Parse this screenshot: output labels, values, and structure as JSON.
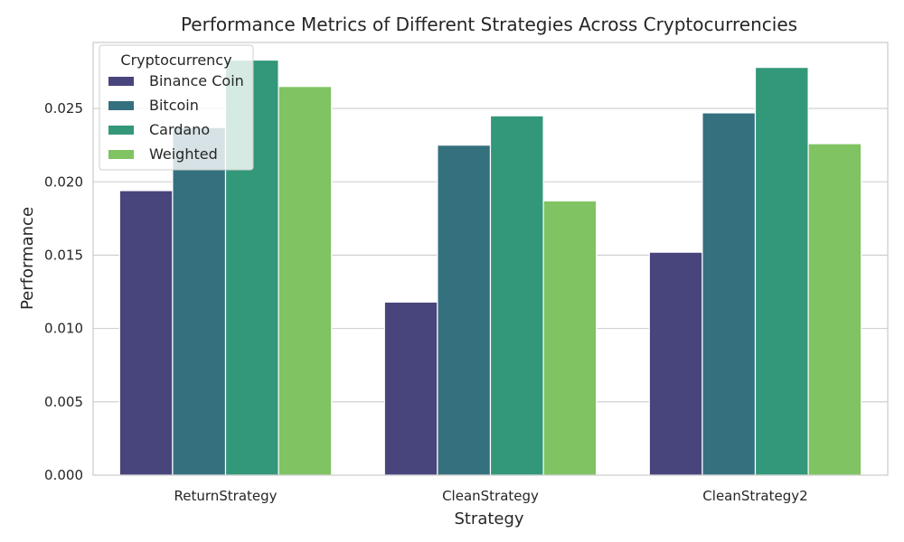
{
  "chart_data": {
    "type": "bar",
    "title": "Performance Metrics of Different Strategies Across Cryptocurrencies",
    "xlabel": "Strategy",
    "ylabel": "Performance",
    "categories": [
      "ReturnStrategy",
      "CleanStrategy",
      "CleanStrategy2"
    ],
    "series": [
      {
        "name": "Binance Coin",
        "color": "#48457c",
        "values": [
          0.0194,
          0.0118,
          0.0152
        ]
      },
      {
        "name": "Bitcoin",
        "color": "#35707f",
        "values": [
          0.0237,
          0.0225,
          0.0247
        ]
      },
      {
        "name": "Cardano",
        "color": "#33977a",
        "values": [
          0.0283,
          0.0245,
          0.0278
        ]
      },
      {
        "name": "Weighted",
        "color": "#7fc362",
        "values": [
          0.0265,
          0.0187,
          0.0226
        ]
      }
    ],
    "ylim": [
      0,
      0.0295
    ],
    "yticks": [
      "0.000",
      "0.005",
      "0.010",
      "0.015",
      "0.020",
      "0.025"
    ],
    "grid": true,
    "legend": {
      "title": "Cryptocurrency",
      "position": "top-left"
    }
  }
}
